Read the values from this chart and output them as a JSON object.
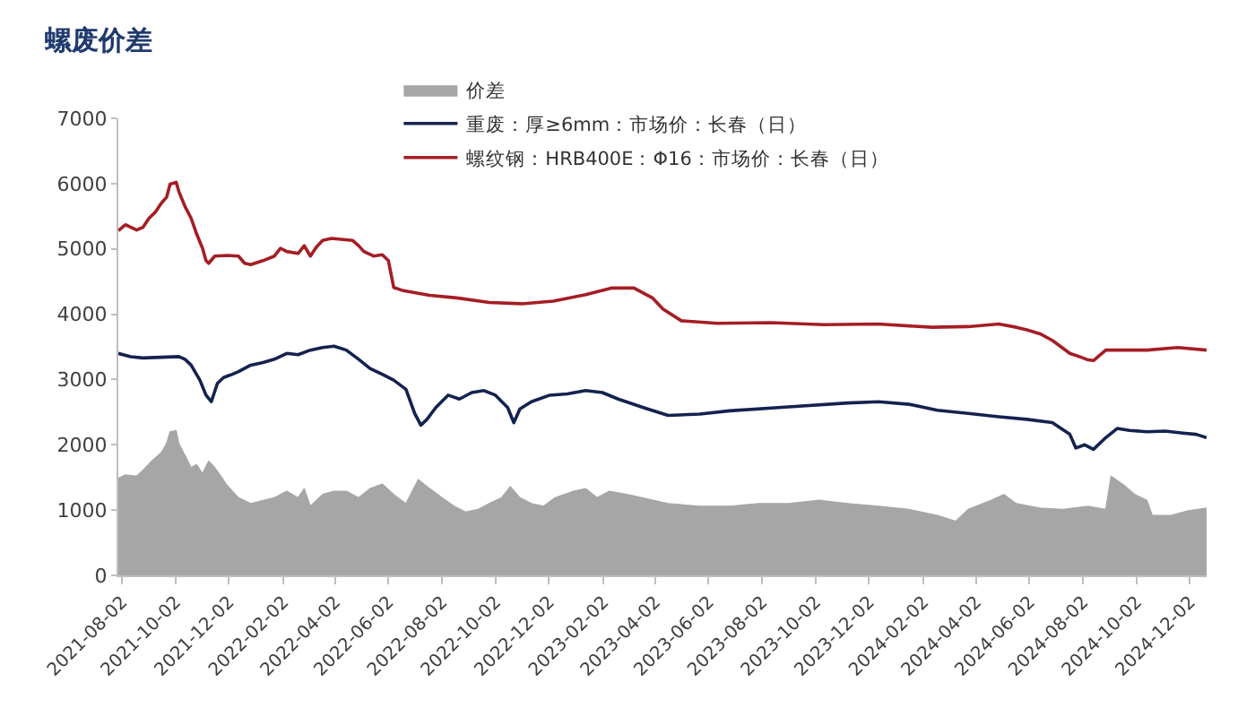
{
  "chart_data": {
    "type": "line",
    "title": "螺废价差",
    "xlim": [
      "2021-07-29",
      "2024-12-21"
    ],
    "xticks": [
      "2021-08-02",
      "2021-10-02",
      "2021-12-02",
      "2022-02-02",
      "2022-04-02",
      "2022-06-02",
      "2022-08-02",
      "2022-10-02",
      "2022-12-02",
      "2023-02-02",
      "2023-04-02",
      "2023-06-02",
      "2023-08-02",
      "2023-10-02",
      "2023-12-02",
      "2024-02-02",
      "2024-04-02",
      "2024-06-02",
      "2024-08-02",
      "2024-10-02",
      "2024-12-02"
    ],
    "ylim": [
      0,
      7000
    ],
    "yticks": [
      0,
      1000,
      2000,
      3000,
      4000,
      5000,
      6000,
      7000
    ],
    "legend": "top",
    "series": [
      {
        "name": "价差",
        "type": "area",
        "color": "#a6a6a6",
        "x": [
          "2021-07-29",
          "2021-08-06",
          "2021-08-19",
          "2021-08-26",
          "2021-09-05",
          "2021-09-16",
          "2021-09-22",
          "2021-09-26",
          "2021-10-03",
          "2021-10-06",
          "2021-10-13",
          "2021-10-20",
          "2021-10-26",
          "2021-11-02",
          "2021-11-09",
          "2021-11-16",
          "2021-11-23",
          "2021-11-30",
          "2021-12-13",
          "2021-12-27",
          "2022-01-10",
          "2022-01-23",
          "2022-02-06",
          "2022-02-19",
          "2022-02-26",
          "2022-03-05",
          "2022-03-19",
          "2022-04-01",
          "2022-04-15",
          "2022-04-29",
          "2022-05-12",
          "2022-05-26",
          "2022-06-08",
          "2022-06-22",
          "2022-07-06",
          "2022-07-19",
          "2022-08-02",
          "2022-08-16",
          "2022-08-29",
          "2022-09-12",
          "2022-09-25",
          "2022-10-09",
          "2022-10-19",
          "2022-10-30",
          "2022-11-12",
          "2022-11-26",
          "2022-12-09",
          "2022-12-30",
          "2023-01-13",
          "2023-01-26",
          "2023-02-09",
          "2023-03-01",
          "2023-04-17",
          "2023-05-23",
          "2023-06-26",
          "2023-07-29",
          "2023-09-01",
          "2023-10-06",
          "2023-11-08",
          "2023-12-13",
          "2024-01-17",
          "2024-02-18",
          "2024-03-10",
          "2024-03-24",
          "2024-04-19",
          "2024-05-04",
          "2024-05-18",
          "2024-06-14",
          "2024-07-10",
          "2024-08-08",
          "2024-08-28",
          "2024-09-03",
          "2024-09-18",
          "2024-09-30",
          "2024-10-14",
          "2024-10-20",
          "2024-11-10",
          "2024-11-30",
          "2024-12-21"
        ],
        "values": [
          1490,
          1540,
          1520,
          1610,
          1750,
          1880,
          2020,
          2200,
          2220,
          2020,
          1840,
          1650,
          1700,
          1560,
          1750,
          1650,
          1520,
          1380,
          1190,
          1100,
          1150,
          1190,
          1290,
          1190,
          1330,
          1060,
          1240,
          1290,
          1290,
          1190,
          1330,
          1400,
          1240,
          1100,
          1470,
          1330,
          1190,
          1060,
          970,
          1010,
          1100,
          1190,
          1360,
          1190,
          1100,
          1060,
          1190,
          1290,
          1330,
          1190,
          1290,
          1240,
          1100,
          1060,
          1060,
          1100,
          1100,
          1150,
          1100,
          1060,
          1010,
          920,
          830,
          1010,
          1150,
          1240,
          1100,
          1030,
          1010,
          1060,
          1010,
          1520,
          1380,
          1240,
          1150,
          920,
          920,
          990,
          1030
        ]
      },
      {
        "name": "重废：厚≥6mm：市场价：长春（日）",
        "color": "#14224f",
        "x": [
          "2021-07-29",
          "2021-08-12",
          "2021-08-26",
          "2021-09-16",
          "2021-10-06",
          "2021-10-13",
          "2021-10-20",
          "2021-10-30",
          "2021-11-06",
          "2021-11-12",
          "2021-11-19",
          "2021-11-26",
          "2021-12-06",
          "2021-12-13",
          "2021-12-27",
          "2022-01-10",
          "2022-01-23",
          "2022-02-06",
          "2022-02-19",
          "2022-03-05",
          "2022-03-19",
          "2022-04-01",
          "2022-04-15",
          "2022-04-29",
          "2022-05-12",
          "2022-05-26",
          "2022-06-08",
          "2022-06-22",
          "2022-07-02",
          "2022-07-09",
          "2022-07-16",
          "2022-07-26",
          "2022-08-09",
          "2022-08-22",
          "2022-09-05",
          "2022-09-19",
          "2022-10-02",
          "2022-10-16",
          "2022-10-23",
          "2022-10-30",
          "2022-11-12",
          "2022-12-03",
          "2022-12-23",
          "2023-01-13",
          "2023-02-01",
          "2023-02-19",
          "2023-03-22",
          "2023-04-17",
          "2023-05-23",
          "2023-06-26",
          "2023-09-01",
          "2023-11-08",
          "2023-12-13",
          "2024-01-17",
          "2024-02-18",
          "2024-03-24",
          "2024-04-28",
          "2024-05-30",
          "2024-06-28",
          "2024-07-18",
          "2024-07-25",
          "2024-08-04",
          "2024-08-14",
          "2024-08-28",
          "2024-09-10",
          "2024-09-24",
          "2024-10-14",
          "2024-11-04",
          "2024-11-24",
          "2024-12-09",
          "2024-12-21"
        ],
        "values": [
          3400,
          3350,
          3330,
          3340,
          3350,
          3310,
          3220,
          2990,
          2760,
          2660,
          2940,
          3030,
          3080,
          3120,
          3220,
          3260,
          3310,
          3400,
          3380,
          3450,
          3490,
          3510,
          3450,
          3310,
          3170,
          3080,
          2990,
          2850,
          2480,
          2300,
          2390,
          2570,
          2760,
          2700,
          2800,
          2830,
          2760,
          2570,
          2340,
          2550,
          2660,
          2760,
          2780,
          2830,
          2800,
          2700,
          2560,
          2450,
          2470,
          2520,
          2580,
          2640,
          2660,
          2620,
          2530,
          2480,
          2430,
          2390,
          2340,
          2160,
          1950,
          2000,
          1930,
          2110,
          2250,
          2220,
          2200,
          2210,
          2180,
          2160,
          2110
        ]
      },
      {
        "name": "螺纹钢：HRB400E：Φ16：市场价：长春（日）",
        "color": "#a51d24",
        "x": [
          "2021-07-29",
          "2021-08-06",
          "2021-08-19",
          "2021-08-26",
          "2021-09-02",
          "2021-09-09",
          "2021-09-16",
          "2021-09-22",
          "2021-09-26",
          "2021-10-03",
          "2021-10-06",
          "2021-10-13",
          "2021-10-20",
          "2021-10-26",
          "2021-11-02",
          "2021-11-06",
          "2021-11-09",
          "2021-11-16",
          "2021-11-30",
          "2021-12-13",
          "2021-12-20",
          "2021-12-27",
          "2022-01-10",
          "2022-01-23",
          "2022-01-30",
          "2022-02-06",
          "2022-02-19",
          "2022-02-26",
          "2022-03-05",
          "2022-03-12",
          "2022-03-19",
          "2022-03-29",
          "2022-04-22",
          "2022-04-29",
          "2022-05-05",
          "2022-05-16",
          "2022-05-26",
          "2022-06-02",
          "2022-06-08",
          "2022-06-19",
          "2022-07-19",
          "2022-08-19",
          "2022-09-25",
          "2022-11-01",
          "2022-12-07",
          "2023-01-13",
          "2023-02-11",
          "2023-03-09",
          "2023-03-30",
          "2023-04-11",
          "2023-05-02",
          "2023-06-12",
          "2023-08-12",
          "2023-10-12",
          "2023-12-12",
          "2024-02-12",
          "2024-03-24",
          "2024-04-28",
          "2024-05-18",
          "2024-05-30",
          "2024-06-14",
          "2024-06-28",
          "2024-07-18",
          "2024-07-31",
          "2024-08-08",
          "2024-08-14",
          "2024-08-28",
          "2024-09-10",
          "2024-10-14",
          "2024-11-18",
          "2024-12-21"
        ],
        "values": [
          5280,
          5370,
          5290,
          5330,
          5470,
          5560,
          5700,
          5790,
          5990,
          6020,
          5880,
          5650,
          5470,
          5240,
          5010,
          4820,
          4780,
          4890,
          4900,
          4890,
          4780,
          4760,
          4820,
          4890,
          5010,
          4960,
          4930,
          5050,
          4890,
          5030,
          5130,
          5160,
          5130,
          5050,
          4960,
          4890,
          4910,
          4820,
          4410,
          4360,
          4290,
          4250,
          4180,
          4160,
          4200,
          4300,
          4400,
          4400,
          4250,
          4080,
          3900,
          3860,
          3870,
          3840,
          3850,
          3800,
          3810,
          3850,
          3800,
          3760,
          3700,
          3600,
          3400,
          3340,
          3300,
          3290,
          3450,
          3450,
          3450,
          3490,
          3450
        ]
      }
    ]
  }
}
